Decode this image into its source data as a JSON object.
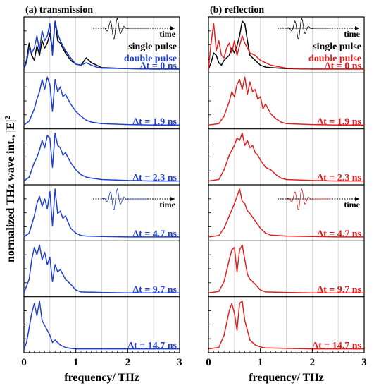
{
  "chart_data": [
    {
      "type": "line",
      "title": "(a) transmission",
      "xlabel": "frequency/ THz",
      "ylabel": "normalized THz wave int., |E|²",
      "xlim": [
        0,
        3
      ],
      "x_ticks": [
        "0",
        "1",
        "2",
        "3"
      ],
      "grid": true,
      "color": "#1f3fd1",
      "legend": [
        "single pulse",
        "double pulse"
      ],
      "inset_label": "time",
      "stack": [
        {
          "delay_label": "Δt = 0 ns",
          "series": [
            {
              "name": "single pulse",
              "color": "#000000",
              "x": [
                0,
                0.05,
                0.1,
                0.15,
                0.2,
                0.25,
                0.3,
                0.35,
                0.4,
                0.45,
                0.5,
                0.55,
                0.6,
                0.65,
                0.7,
                0.8,
                0.9,
                1.0,
                1.1,
                1.2,
                1.3,
                1.4,
                1.5,
                2.0,
                2.5,
                3.0
              ],
              "y": [
                0.02,
                0.2,
                0.55,
                0.3,
                0.2,
                0.5,
                0.3,
                0.6,
                0.45,
                0.55,
                0.75,
                0.4,
                1.0,
                0.6,
                0.55,
                0.35,
                0.2,
                0.12,
                0.1,
                0.25,
                0.15,
                0.1,
                0.05,
                0.03,
                0.02,
                0.02
              ]
            },
            {
              "name": "double pulse",
              "color": "#1f3fd1",
              "x": [
                0,
                0.05,
                0.1,
                0.15,
                0.2,
                0.25,
                0.3,
                0.35,
                0.4,
                0.45,
                0.5,
                0.55,
                0.6,
                0.65,
                0.7,
                0.8,
                0.9,
                1.0,
                1.1,
                1.2,
                1.3,
                1.4,
                1.5,
                2.0,
                2.5,
                3.0
              ],
              "y": [
                0.02,
                0.15,
                0.45,
                0.35,
                0.45,
                0.7,
                0.4,
                0.8,
                0.6,
                0.7,
                0.95,
                0.3,
                1.0,
                0.75,
                0.6,
                0.4,
                0.25,
                0.12,
                0.1,
                0.15,
                0.1,
                0.06,
                0.04,
                0.03,
                0.02,
                0.02
              ]
            }
          ]
        },
        {
          "delay_label": "Δt = 1.9 ns",
          "series": [
            {
              "name": "double pulse",
              "color": "#1f3fd1",
              "x": [
                0,
                0.1,
                0.2,
                0.25,
                0.3,
                0.35,
                0.4,
                0.45,
                0.5,
                0.55,
                0.6,
                0.65,
                0.7,
                0.75,
                0.8,
                0.9,
                1.0,
                1.1,
                1.2,
                1.3,
                1.5,
                2.0,
                2.5,
                3.0
              ],
              "y": [
                0.02,
                0.1,
                0.35,
                0.55,
                0.7,
                0.95,
                0.75,
                1.0,
                0.85,
                0.3,
                0.95,
                0.7,
                0.8,
                0.6,
                0.65,
                0.45,
                0.3,
                0.2,
                0.12,
                0.08,
                0.05,
                0.03,
                0.02,
                0.02
              ]
            }
          ]
        },
        {
          "delay_label": "Δt = 2.3 ns",
          "series": [
            {
              "name": "double pulse",
              "color": "#1f3fd1",
              "x": [
                0,
                0.1,
                0.2,
                0.25,
                0.3,
                0.35,
                0.4,
                0.45,
                0.5,
                0.55,
                0.6,
                0.65,
                0.7,
                0.75,
                0.8,
                0.9,
                1.0,
                1.1,
                1.2,
                1.3,
                1.5,
                2.0,
                2.5,
                3.0
              ],
              "y": [
                0.02,
                0.1,
                0.4,
                0.5,
                0.65,
                0.85,
                0.7,
                0.95,
                0.9,
                0.3,
                1.0,
                0.75,
                0.7,
                0.55,
                0.6,
                0.4,
                0.25,
                0.15,
                0.1,
                0.08,
                0.05,
                0.03,
                0.02,
                0.02
              ]
            }
          ]
        },
        {
          "delay_label": "Δt = 4.7 ns",
          "series": [
            {
              "name": "double pulse",
              "color": "#1f3fd1",
              "x": [
                0,
                0.1,
                0.2,
                0.25,
                0.3,
                0.35,
                0.4,
                0.45,
                0.5,
                0.55,
                0.6,
                0.65,
                0.7,
                0.75,
                0.8,
                0.9,
                1.0,
                1.1,
                1.2,
                1.5,
                2.0,
                2.5,
                3.0
              ],
              "y": [
                0.02,
                0.1,
                0.45,
                0.7,
                0.85,
                0.65,
                0.8,
                0.6,
                0.95,
                0.25,
                1.0,
                0.5,
                0.55,
                0.4,
                0.45,
                0.2,
                0.1,
                0.05,
                0.04,
                0.03,
                0.02,
                0.02,
                0.02
              ]
            }
          ]
        },
        {
          "delay_label": "Δt = 9.7 ns",
          "series": [
            {
              "name": "double pulse",
              "color": "#1f3fd1",
              "x": [
                0,
                0.1,
                0.15,
                0.2,
                0.25,
                0.3,
                0.35,
                0.4,
                0.45,
                0.5,
                0.55,
                0.6,
                0.65,
                0.7,
                0.8,
                0.9,
                1.0,
                1.1,
                1.5,
                2.0,
                2.5,
                3.0
              ],
              "y": [
                0.02,
                0.3,
                0.7,
                0.95,
                0.8,
                1.0,
                0.7,
                0.85,
                0.6,
                0.75,
                0.25,
                0.6,
                0.45,
                0.5,
                0.3,
                0.2,
                0.08,
                0.04,
                0.03,
                0.02,
                0.02,
                0.02
              ]
            }
          ]
        },
        {
          "delay_label": "Δt = 14.7 ns",
          "series": [
            {
              "name": "double pulse",
              "color": "#1f3fd1",
              "x": [
                0,
                0.05,
                0.1,
                0.15,
                0.2,
                0.25,
                0.3,
                0.35,
                0.4,
                0.45,
                0.5,
                0.55,
                0.6,
                0.7,
                0.8,
                0.9,
                1.0,
                1.5,
                2.0,
                2.5,
                3.0
              ],
              "y": [
                0.02,
                0.15,
                0.45,
                0.75,
                0.95,
                0.7,
                1.0,
                0.6,
                0.5,
                0.4,
                0.3,
                0.15,
                0.2,
                0.1,
                0.05,
                0.03,
                0.02,
                0.02,
                0.02,
                0.02,
                0.02
              ]
            }
          ]
        }
      ]
    },
    {
      "type": "line",
      "title": "(b) reflection",
      "xlabel": "frequency/ THz",
      "xlim": [
        0,
        3
      ],
      "x_ticks": [
        "0",
        "1",
        "2",
        "3"
      ],
      "grid": true,
      "color": "#e02020",
      "legend": [
        "single pulse",
        "double pulse"
      ],
      "inset_label": "time",
      "stack": [
        {
          "delay_label": "Δt = 0 ns",
          "series": [
            {
              "name": "single pulse",
              "color": "#000000",
              "x": [
                0,
                0.05,
                0.1,
                0.15,
                0.2,
                0.25,
                0.3,
                0.35,
                0.4,
                0.45,
                0.5,
                0.55,
                0.6,
                0.65,
                0.7,
                0.75,
                0.8,
                0.9,
                1.0,
                1.1,
                1.2,
                1.5,
                2.0,
                2.5,
                3.0
              ],
              "y": [
                0.02,
                0.15,
                0.35,
                0.3,
                0.15,
                0.1,
                0.2,
                0.25,
                0.3,
                0.45,
                0.35,
                0.5,
                0.7,
                1.0,
                0.95,
                0.6,
                0.3,
                0.2,
                0.1,
                0.06,
                0.05,
                0.03,
                0.02,
                0.02,
                0.02
              ]
            },
            {
              "name": "double pulse",
              "color": "#e02020",
              "x": [
                0,
                0.05,
                0.1,
                0.15,
                0.2,
                0.25,
                0.3,
                0.35,
                0.4,
                0.45,
                0.5,
                0.55,
                0.6,
                0.65,
                0.7,
                0.75,
                0.8,
                0.9,
                1.0,
                1.1,
                1.2,
                1.5,
                2.0,
                2.5,
                3.0
              ],
              "y": [
                0.02,
                0.55,
                0.95,
                0.4,
                0.6,
                0.3,
                0.25,
                0.45,
                0.55,
                0.35,
                0.6,
                0.3,
                0.5,
                0.7,
                0.55,
                0.45,
                0.35,
                0.3,
                0.2,
                0.15,
                0.1,
                0.04,
                0.02,
                0.02,
                0.02
              ]
            }
          ]
        },
        {
          "delay_label": "Δt = 1.9 ns",
          "series": [
            {
              "name": "double pulse",
              "color": "#e02020",
              "x": [
                0,
                0.2,
                0.3,
                0.4,
                0.45,
                0.5,
                0.55,
                0.6,
                0.65,
                0.7,
                0.75,
                0.8,
                0.85,
                0.9,
                0.95,
                1.0,
                1.05,
                1.1,
                1.2,
                1.3,
                1.4,
                1.5,
                2.0,
                2.5,
                3.0
              ],
              "y": [
                0.02,
                0.05,
                0.2,
                0.5,
                0.7,
                0.6,
                0.85,
                0.95,
                0.75,
                1.0,
                0.65,
                0.9,
                0.7,
                0.75,
                0.55,
                0.6,
                0.35,
                0.45,
                0.25,
                0.15,
                0.08,
                0.05,
                0.03,
                0.02,
                0.02
              ]
            }
          ]
        },
        {
          "delay_label": "Δt = 2.3 ns",
          "series": [
            {
              "name": "double pulse",
              "color": "#e02020",
              "x": [
                0,
                0.2,
                0.3,
                0.4,
                0.5,
                0.55,
                0.6,
                0.65,
                0.7,
                0.75,
                0.8,
                0.85,
                0.9,
                0.95,
                1.0,
                1.1,
                1.2,
                1.3,
                1.4,
                1.5,
                2.0,
                2.5,
                3.0
              ],
              "y": [
                0.02,
                0.05,
                0.25,
                0.55,
                0.75,
                0.9,
                0.85,
                1.0,
                0.75,
                0.85,
                0.7,
                0.75,
                0.6,
                0.55,
                0.45,
                0.3,
                0.25,
                0.15,
                0.08,
                0.05,
                0.03,
                0.02,
                0.02
              ]
            }
          ]
        },
        {
          "delay_label": "Δt = 4.7 ns",
          "series": [
            {
              "name": "double pulse",
              "color": "#e02020",
              "x": [
                0,
                0.2,
                0.3,
                0.4,
                0.5,
                0.55,
                0.6,
                0.65,
                0.7,
                0.75,
                0.8,
                0.9,
                1.0,
                1.1,
                1.2,
                1.5,
                2.0,
                2.5,
                3.0
              ],
              "y": [
                0.02,
                0.05,
                0.2,
                0.45,
                0.7,
                0.85,
                1.0,
                0.75,
                0.7,
                0.55,
                0.5,
                0.35,
                0.2,
                0.1,
                0.06,
                0.04,
                0.03,
                0.02,
                0.02
              ]
            }
          ]
        },
        {
          "delay_label": "Δt = 9.7 ns",
          "series": [
            {
              "name": "double pulse",
              "color": "#e02020",
              "x": [
                0,
                0.2,
                0.3,
                0.4,
                0.45,
                0.5,
                0.55,
                0.6,
                0.65,
                0.7,
                0.75,
                0.8,
                0.9,
                1.0,
                1.1,
                1.5,
                2.0,
                2.5,
                3.0
              ],
              "y": [
                0.02,
                0.05,
                0.25,
                0.7,
                0.9,
                0.95,
                0.45,
                0.9,
                1.0,
                0.7,
                0.4,
                0.3,
                0.2,
                0.08,
                0.04,
                0.03,
                0.02,
                0.02,
                0.02
              ]
            }
          ]
        },
        {
          "delay_label": "Δt = 14.7 ns",
          "series": [
            {
              "name": "double pulse",
              "color": "#e02020",
              "x": [
                0,
                0.2,
                0.3,
                0.4,
                0.45,
                0.5,
                0.55,
                0.6,
                0.65,
                0.7,
                0.75,
                0.8,
                0.9,
                1.0,
                1.1,
                1.5,
                2.0,
                2.5,
                3.0
              ],
              "y": [
                0.02,
                0.05,
                0.3,
                0.8,
                0.95,
                0.75,
                0.4,
                0.95,
                1.0,
                0.6,
                0.4,
                0.2,
                0.1,
                0.06,
                0.04,
                0.03,
                0.02,
                0.02,
                0.02
              ]
            }
          ]
        }
      ]
    }
  ],
  "shared_ylabel": "normalized THz wave int., |E|",
  "shared_ylabel_sup": "2"
}
